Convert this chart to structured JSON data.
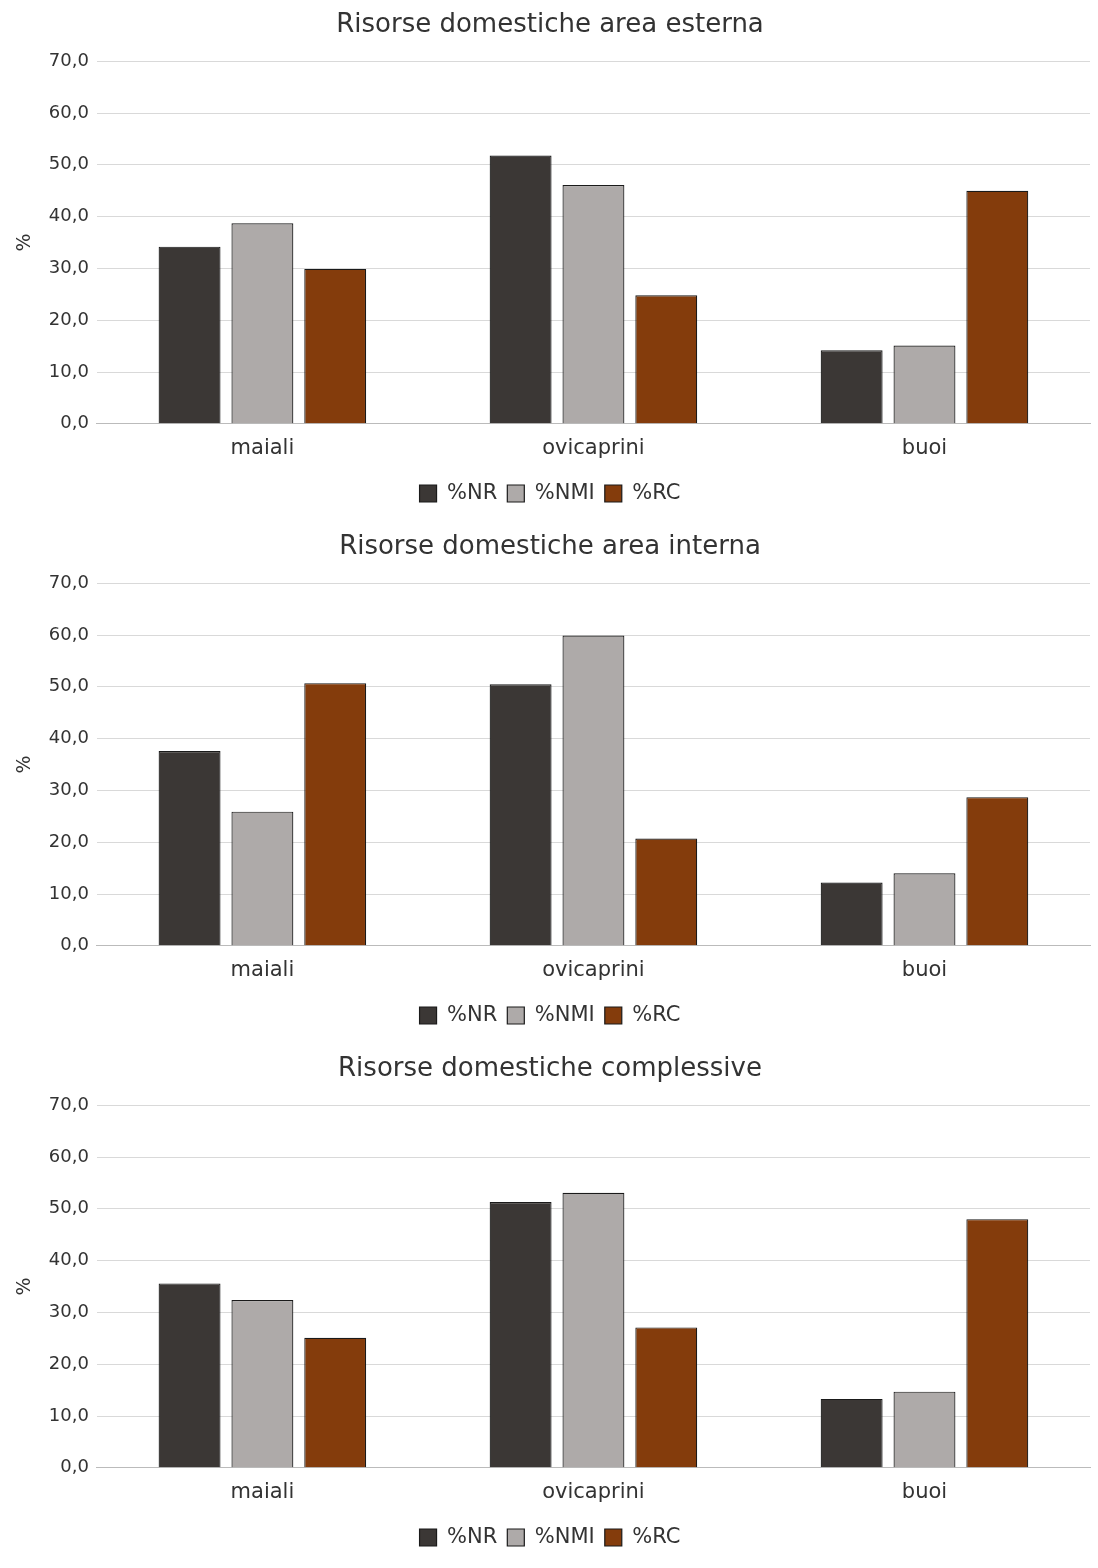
{
  "chart_data": [
    {
      "type": "bar",
      "title": "Risorse domestiche area esterna",
      "ylabel": "%",
      "categories": [
        "maiali",
        "ovicaprini",
        "buoi"
      ],
      "ylim": [
        0,
        70
      ],
      "yticks": [
        {
          "value": 0,
          "label": "0,0"
        },
        {
          "value": 10,
          "label": "10,0"
        },
        {
          "value": 20,
          "label": "20,0"
        },
        {
          "value": 30,
          "label": "30,0"
        },
        {
          "value": 40,
          "label": "40,0"
        },
        {
          "value": 50,
          "label": "50,0"
        },
        {
          "value": 60,
          "label": "60,0"
        },
        {
          "value": 70,
          "label": "70,0"
        }
      ],
      "grid": "y",
      "legend": "bottom",
      "series": [
        {
          "name": "%NR",
          "color": "#3b3735",
          "values": [
            34.2,
            51.8,
            14.2
          ]
        },
        {
          "name": "%NMI",
          "color": "#aeaaa9",
          "values": [
            38.7,
            46.1,
            15.1
          ]
        },
        {
          "name": "%RC",
          "color": "#843c0c",
          "values": [
            29.9,
            24.8,
            45.0
          ]
        }
      ]
    },
    {
      "type": "bar",
      "title": "Risorse domestiche area interna",
      "ylabel": "%",
      "categories": [
        "maiali",
        "ovicaprini",
        "buoi"
      ],
      "ylim": [
        0,
        70
      ],
      "yticks": [
        {
          "value": 0,
          "label": "0,0"
        },
        {
          "value": 10,
          "label": "10,0"
        },
        {
          "value": 20,
          "label": "20,0"
        },
        {
          "value": 30,
          "label": "30,0"
        },
        {
          "value": 40,
          "label": "40,0"
        },
        {
          "value": 50,
          "label": "50,0"
        },
        {
          "value": 60,
          "label": "60,0"
        },
        {
          "value": 70,
          "label": "70,0"
        }
      ],
      "grid": "y",
      "legend": "bottom",
      "series": [
        {
          "name": "%NR",
          "color": "#3b3735",
          "values": [
            37.6,
            50.5,
            12.2
          ]
        },
        {
          "name": "%NMI",
          "color": "#aeaaa9",
          "values": [
            25.9,
            59.9,
            14.0
          ]
        },
        {
          "name": "%RC",
          "color": "#843c0c",
          "values": [
            50.7,
            20.7,
            28.7
          ]
        }
      ]
    },
    {
      "type": "bar",
      "title": "Risorse domestiche complessive",
      "ylabel": "%",
      "categories": [
        "maiali",
        "ovicaprini",
        "buoi"
      ],
      "ylim": [
        0,
        70
      ],
      "yticks": [
        {
          "value": 0,
          "label": "0,0"
        },
        {
          "value": 10,
          "label": "10,0"
        },
        {
          "value": 20,
          "label": "20,0"
        },
        {
          "value": 30,
          "label": "30,0"
        },
        {
          "value": 40,
          "label": "40,0"
        },
        {
          "value": 50,
          "label": "50,0"
        },
        {
          "value": 60,
          "label": "60,0"
        },
        {
          "value": 70,
          "label": "70,0"
        }
      ],
      "grid": "y",
      "legend": "bottom",
      "series": [
        {
          "name": "%NR",
          "color": "#3b3735",
          "values": [
            35.6,
            51.3,
            13.3
          ]
        },
        {
          "name": "%NMI",
          "color": "#aeaaa9",
          "values": [
            32.4,
            53.1,
            14.7
          ]
        },
        {
          "name": "%RC",
          "color": "#843c0c",
          "values": [
            25.1,
            27.1,
            48.0
          ]
        }
      ]
    }
  ]
}
